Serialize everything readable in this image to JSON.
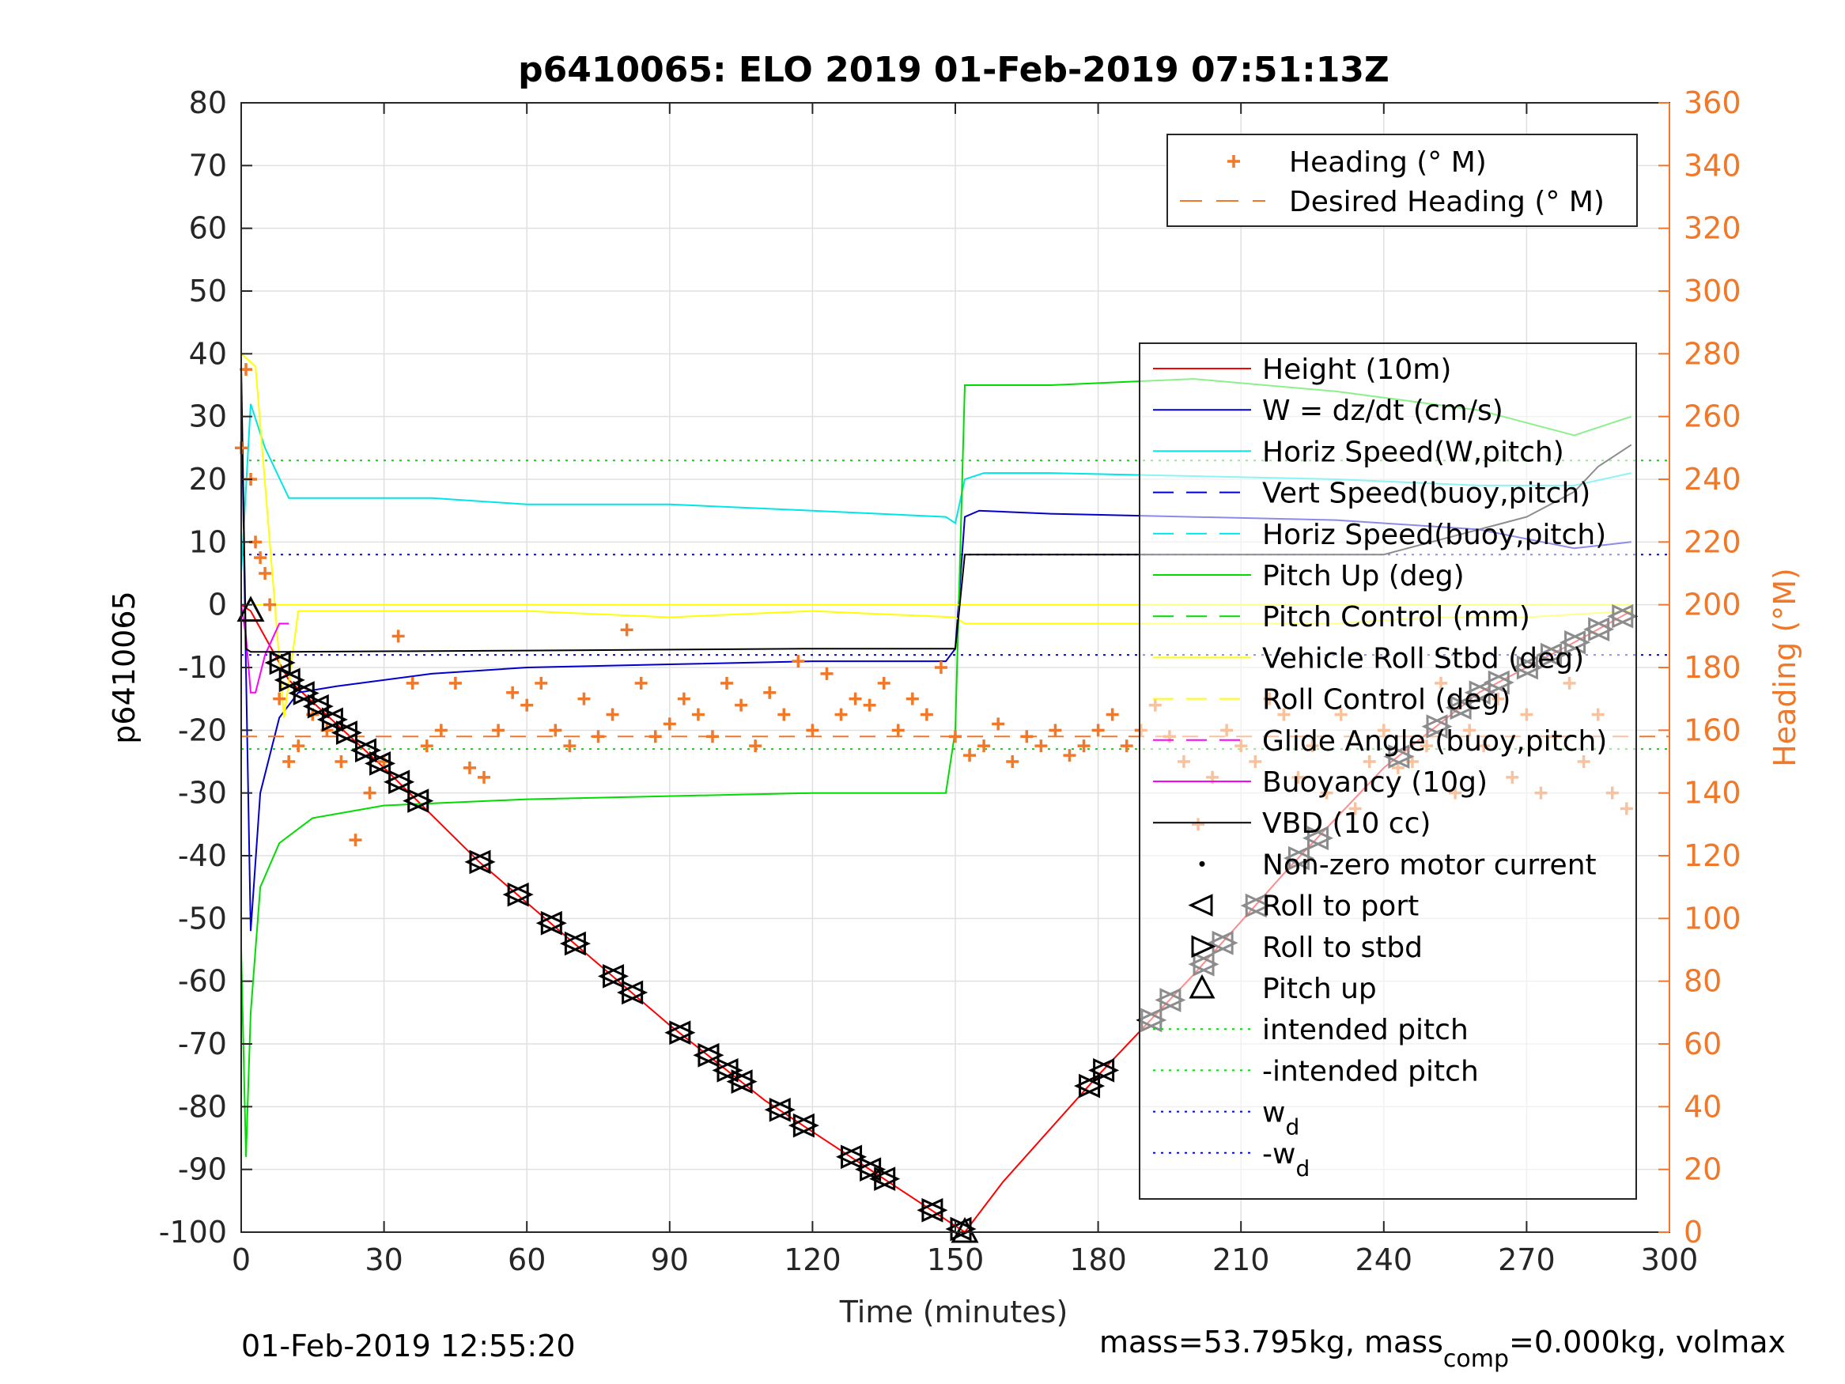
{
  "chart_data": {
    "type": "line",
    "title": "p6410065: ELO 2019 01-Feb-2019 07:51:13Z",
    "xlabel": "Time (minutes)",
    "ylabel": "p6410065",
    "y2label": "Heading (°M)",
    "xlim": [
      0,
      300
    ],
    "ylim": [
      -100,
      80
    ],
    "y2lim": [
      0,
      360
    ],
    "xticks": [
      0,
      30,
      60,
      90,
      120,
      150,
      180,
      210,
      240,
      270,
      300
    ],
    "yticks": [
      -100,
      -90,
      -80,
      -70,
      -60,
      -50,
      -40,
      -30,
      -20,
      -10,
      0,
      10,
      20,
      30,
      40,
      50,
      60,
      70,
      80
    ],
    "y2ticks": [
      0,
      20,
      40,
      60,
      80,
      100,
      120,
      140,
      160,
      180,
      200,
      220,
      240,
      260,
      280,
      300,
      320,
      340,
      360
    ],
    "grid": true,
    "footer_left": "01-Feb-2019 12:55:20",
    "footer_right": "mass=53.795kg, mass",
    "footer_right_sub": "comp",
    "footer_right_tail": "=0.000kg, volmax",
    "legend_heading": [
      {
        "label": "Heading (° M)",
        "color": "#f07828"
      },
      {
        "label": "Desired Heading (° M)",
        "color": "#f07828"
      }
    ],
    "legend_main": [
      {
        "label": "Height (10m)",
        "color": "#ff0000"
      },
      {
        "label": "W = dz/dt (cm/s)",
        "color": "#0000cc"
      },
      {
        "label": "Horiz Speed(W,pitch)",
        "color": "#00e6e6"
      },
      {
        "label": "Vert Speed(buoy,pitch)",
        "color": "#0000cc"
      },
      {
        "label": "Horiz Speed(buoy,pitch)",
        "color": "#00e6e6"
      },
      {
        "label": "Pitch Up (deg)",
        "color": "#00dd00"
      },
      {
        "label": "Pitch Control (mm)",
        "color": "#00dd00"
      },
      {
        "label": "Vehicle Roll Stbd (deg)",
        "color": "#ffff00"
      },
      {
        "label": "Roll Control (deg)",
        "color": "#ffff00"
      },
      {
        "label": "Glide Angle (buoy,pitch)",
        "color": "#ff00ff"
      },
      {
        "label": "Buoyancy (10g)",
        "color": "#ff00ff"
      },
      {
        "label": "VBD (10 cc)",
        "color": "#000000"
      },
      {
        "label": "Non-zero motor current",
        "color": "#000000"
      },
      {
        "label": "Roll to port",
        "color": "#000000"
      },
      {
        "label": "Roll to stbd",
        "color": "#000000"
      },
      {
        "label": "Pitch up",
        "color": "#000000"
      },
      {
        "label": "intended pitch",
        "color": "#00dd00"
      },
      {
        "label": "-intended pitch",
        "color": "#00dd00"
      },
      {
        "label": "w",
        "sub": "d",
        "color": "#0000ff"
      },
      {
        "label": "-w",
        "sub": "d",
        "color": "#0000ff"
      }
    ],
    "series": [
      {
        "name": "Height (10m)",
        "color": "#ff0000",
        "x": [
          0,
          2,
          10,
          30,
          50,
          70,
          90,
          110,
          130,
          150,
          152,
          160,
          180,
          200,
          220,
          240,
          260,
          280,
          292
        ],
        "y": [
          0,
          -1,
          -12,
          -26,
          -41,
          -54,
          -67,
          -79,
          -89,
          -99,
          -100,
          -92,
          -75,
          -59,
          -42,
          -26,
          -14,
          -6,
          -1
        ]
      },
      {
        "name": "W = dz/dt (cm/s)",
        "color": "#0000cc",
        "x": [
          0,
          1,
          2,
          4,
          8,
          12,
          20,
          40,
          60,
          90,
          120,
          148,
          150,
          152,
          155,
          170,
          200,
          230,
          260,
          280,
          292
        ],
        "y": [
          35,
          -10,
          -52,
          -30,
          -18,
          -14,
          -13,
          -11,
          -10,
          -9.5,
          -9,
          -9,
          -7,
          14,
          15,
          14.5,
          14,
          13.5,
          12,
          9,
          10
        ]
      },
      {
        "name": "Horiz Speed(W,pitch)",
        "color": "#00e6e6",
        "x": [
          0,
          2,
          5,
          10,
          20,
          40,
          60,
          90,
          120,
          148,
          150,
          152,
          156,
          170,
          200,
          230,
          260,
          280,
          292
        ],
        "y": [
          5,
          32,
          25,
          17,
          17,
          17,
          16,
          16,
          15,
          14,
          13,
          20,
          21,
          21,
          20.5,
          20,
          19,
          19,
          21
        ]
      },
      {
        "name": "Pitch Up (deg)",
        "color": "#00dd00",
        "x": [
          0,
          1,
          2,
          4,
          8,
          15,
          30,
          60,
          90,
          120,
          148,
          150,
          152,
          156,
          170,
          200,
          230,
          260,
          280,
          292
        ],
        "y": [
          -55,
          -88,
          -65,
          -45,
          -38,
          -34,
          -32,
          -31,
          -30.5,
          -30,
          -30,
          -20,
          35,
          35,
          35,
          36,
          34,
          31,
          27,
          30
        ]
      },
      {
        "name": "Vehicle Roll Stbd (deg)",
        "color": "#ffff00",
        "x": [
          0,
          3,
          6,
          9,
          12,
          30,
          60,
          90,
          120,
          150,
          152,
          180,
          210,
          230,
          250,
          270,
          292
        ],
        "y": [
          40,
          38,
          10,
          -18,
          -1,
          -1,
          -1,
          -2,
          -1,
          -2,
          -3,
          -3,
          -3,
          -3,
          -2,
          -2,
          -1
        ]
      },
      {
        "name": "Roll Control (deg)",
        "color": "#ffff00",
        "x": [
          0,
          10,
          30,
          60,
          90,
          120,
          148,
          150,
          152,
          180,
          210,
          240,
          270,
          292
        ],
        "y": [
          0,
          0,
          0,
          0,
          0,
          0,
          0,
          0,
          0,
          0,
          0,
          0,
          0,
          0
        ]
      },
      {
        "name": "Buoyancy (10g)",
        "color": "#ff00ff",
        "x": [
          0,
          1,
          2,
          3,
          5,
          8,
          10
        ],
        "y": [
          0,
          -5,
          -14,
          -14,
          -8,
          -3,
          -3
        ]
      },
      {
        "name": "VBD (10 cc)",
        "color": "#000000",
        "x": [
          0,
          1,
          2,
          10,
          60,
          120,
          148,
          150,
          152,
          160,
          200,
          240,
          270,
          280,
          285,
          292
        ],
        "y": [
          38,
          -7,
          -7.5,
          -7.5,
          -7.3,
          -7,
          -7,
          -7,
          8,
          8,
          8,
          8,
          14,
          18,
          22,
          25.5
        ]
      },
      {
        "name": "Heading (° M)",
        "color": "#f07828",
        "x": [
          0,
          1,
          2,
          3,
          4,
          5,
          6,
          8,
          10,
          12,
          15,
          18,
          21,
          24,
          27,
          30,
          33,
          36,
          39,
          42,
          45,
          48,
          51,
          54,
          57,
          60,
          63,
          66,
          69,
          72,
          75,
          78,
          81,
          84,
          87,
          90,
          93,
          96,
          99,
          102,
          105,
          108,
          111,
          114,
          117,
          120,
          123,
          126,
          129,
          132,
          135,
          138,
          141,
          144,
          147,
          150,
          153,
          156,
          159,
          162,
          165,
          168,
          171,
          174,
          177,
          180,
          183,
          186,
          189,
          192,
          195,
          198,
          201,
          204,
          207,
          210,
          213,
          216,
          219,
          222,
          225,
          228,
          231,
          234,
          237,
          240,
          243,
          246,
          249,
          252,
          255,
          258,
          261,
          264,
          267,
          270,
          273,
          276,
          279,
          282,
          285,
          288,
          291
        ],
        "y": [
          250,
          275,
          240,
          220,
          215,
          210,
          200,
          170,
          150,
          155,
          165,
          160,
          150,
          125,
          140,
          150,
          190,
          175,
          155,
          160,
          175,
          148,
          145,
          160,
          172,
          168,
          175,
          160,
          155,
          170,
          158,
          165,
          192,
          175,
          158,
          162,
          170,
          165,
          158,
          175,
          168,
          155,
          172,
          165,
          182,
          160,
          178,
          165,
          170,
          168,
          175,
          160,
          170,
          165,
          180,
          158,
          152,
          155,
          162,
          150,
          158,
          155,
          160,
          152,
          155,
          160,
          165,
          155,
          160,
          168,
          158,
          150,
          130,
          145,
          160,
          155,
          150,
          170,
          165,
          145,
          155,
          140,
          165,
          135,
          150,
          160,
          148,
          150,
          155,
          175,
          140,
          160,
          155,
          170,
          145,
          165,
          140,
          158,
          175,
          150,
          165,
          140,
          135
        ]
      },
      {
        "name": "Desired Heading (° M)",
        "color": "#f07828",
        "x": [
          0,
          300
        ],
        "y": [
          158,
          158
        ]
      }
    ],
    "reference_lines": [
      {
        "name": "intended pitch",
        "y": 23,
        "color": "#00dd00"
      },
      {
        "name": "-intended pitch",
        "y": -23,
        "color": "#00dd00"
      },
      {
        "name": "w_d",
        "y": 8,
        "color": "#0000ff"
      },
      {
        "name": "-w_d",
        "y": -8,
        "color": "#0000ff"
      }
    ],
    "markers": {
      "roll_to_port": {
        "x": [
          8,
          10,
          13,
          16,
          19,
          22,
          26,
          29,
          33,
          37,
          50,
          58,
          65,
          70,
          78,
          82,
          92,
          98,
          102,
          105,
          113,
          118,
          128,
          132,
          135,
          145,
          151,
          178,
          181,
          191,
          195,
          202,
          206,
          213,
          222,
          226,
          243,
          251,
          256,
          260,
          264,
          270,
          275,
          280,
          285,
          290
        ]
      },
      "pitch_up": {
        "x": [
          2,
          152
        ]
      }
    }
  }
}
